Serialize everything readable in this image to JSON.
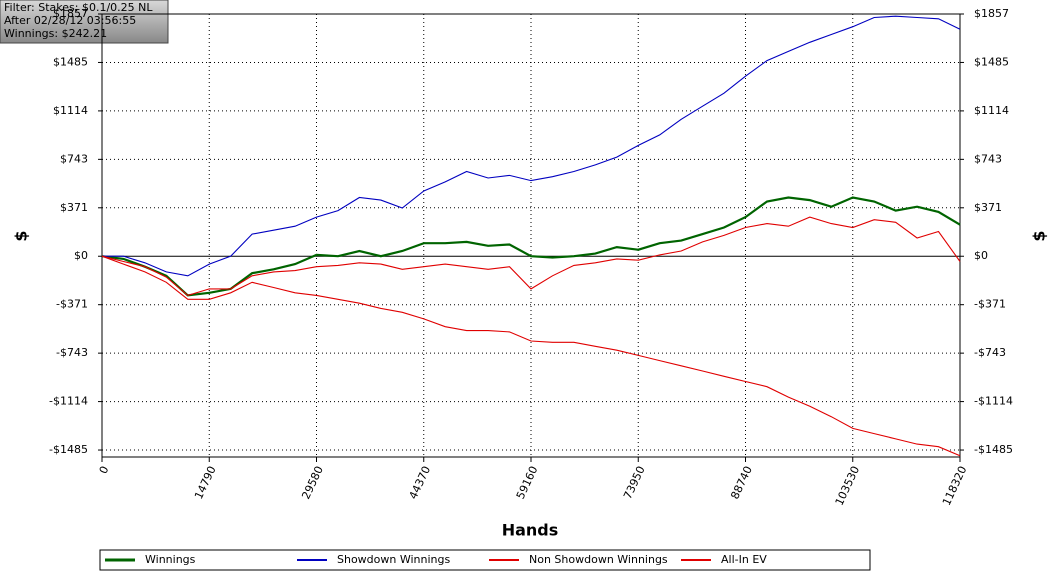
{
  "chart_data": {
    "type": "line",
    "filter_lines": [
      "Filter: Stakes: $0.1/0.25 NL",
      "After 02/28/12 03:56:55",
      "Winnings: $242.21"
    ],
    "x_label": "Hands",
    "y_label": "$",
    "y2_label": "$",
    "xlim": [
      0,
      118320
    ],
    "xticks": [
      0,
      14790,
      29580,
      44370,
      59160,
      73950,
      88740,
      103530,
      118320
    ],
    "ylim": [
      -1539,
      1857
    ],
    "yticks": [
      {
        "value": -1485.6,
        "label": "-$1485"
      },
      {
        "value": -1114.2,
        "label": "-$1114"
      },
      {
        "value": -742.8,
        "label": "-$743"
      },
      {
        "value": -371.4,
        "label": "-$371"
      },
      {
        "value": 0,
        "label": "$0"
      },
      {
        "value": 371.4,
        "label": "$371"
      },
      {
        "value": 742.8,
        "label": "$743"
      },
      {
        "value": 1114.2,
        "label": "$1114"
      },
      {
        "value": 1485.6,
        "label": "$1485"
      },
      {
        "value": 1857,
        "label": "$1857"
      }
    ],
    "grid": true,
    "x": [
      0,
      2958,
      5916,
      8874,
      11832,
      14790,
      17748,
      20706,
      23664,
      26622,
      29580,
      32538,
      35496,
      38454,
      41412,
      44370,
      47328,
      50286,
      53244,
      56202,
      59160,
      62118,
      65076,
      68034,
      70992,
      73950,
      76908,
      79866,
      82824,
      85782,
      88740,
      91698,
      94656,
      97614,
      100572,
      103530,
      106488,
      109446,
      112404,
      115362,
      118320
    ],
    "series": [
      {
        "name": "Winnings",
        "color": "#006400",
        "width": 2.2,
        "values": [
          0,
          -20,
          -80,
          -150,
          -300,
          -280,
          -250,
          -130,
          -100,
          -60,
          10,
          0,
          40,
          0,
          40,
          100,
          100,
          110,
          80,
          90,
          0,
          -10,
          0,
          20,
          70,
          50,
          100,
          120,
          170,
          220,
          300,
          420,
          450,
          430,
          380,
          450,
          420,
          350,
          380,
          340,
          242
        ]
      },
      {
        "name": "Showdown Winnings",
        "color": "#0000c0",
        "width": 1.1,
        "values": [
          0,
          0,
          -50,
          -120,
          -150,
          -60,
          0,
          170,
          200,
          230,
          300,
          350,
          450,
          430,
          370,
          500,
          570,
          650,
          600,
          620,
          580,
          610,
          650,
          700,
          760,
          850,
          930,
          1050,
          1150,
          1250,
          1380,
          1500,
          1570,
          1640,
          1700,
          1760,
          1830,
          1840,
          1830,
          1820,
          1740
        ]
      },
      {
        "name": "Non Showdown Winnings",
        "color": "#e00000",
        "width": 1.1,
        "values": [
          0,
          -40,
          -80,
          -160,
          -300,
          -250,
          -250,
          -150,
          -120,
          -110,
          -80,
          -70,
          -50,
          -60,
          -100,
          -80,
          -60,
          -80,
          -100,
          -80,
          -250,
          -150,
          -70,
          -50,
          -20,
          -30,
          10,
          40,
          110,
          160,
          220,
          250,
          230,
          300,
          250,
          220,
          280,
          260,
          140,
          190,
          -40
        ]
      },
      {
        "name": "All-In EV",
        "color": "#e00000",
        "width": 1.1,
        "values": [
          0,
          -60,
          -120,
          -200,
          -330,
          -330,
          -280,
          -200,
          -240,
          -280,
          -300,
          -330,
          -360,
          -400,
          -430,
          -480,
          -540,
          -570,
          -570,
          -580,
          -650,
          -660,
          -660,
          -690,
          -720,
          -760,
          -800,
          -840,
          -880,
          -920,
          -960,
          -1000,
          -1080,
          -1150,
          -1230,
          -1320,
          -1360,
          -1400,
          -1440,
          -1460,
          -1530
        ]
      }
    ]
  }
}
